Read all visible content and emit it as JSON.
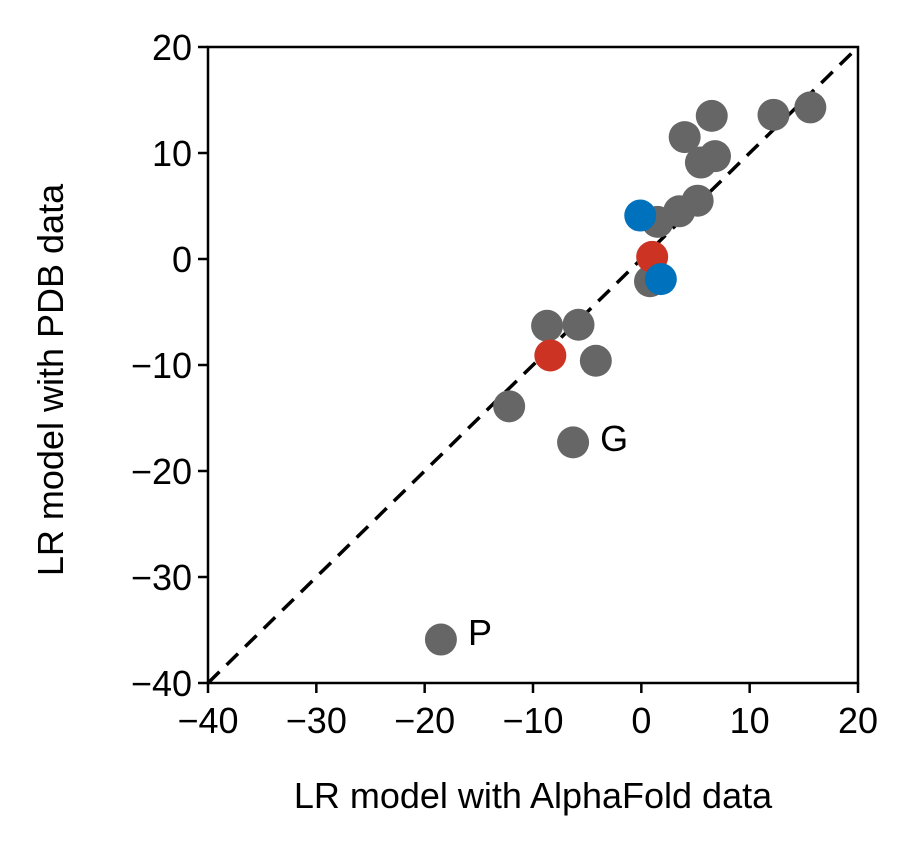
{
  "chart_data": {
    "type": "scatter",
    "title": "",
    "xlabel": "LR model with AlphaFold data",
    "ylabel": "LR model with PDB data",
    "xlim": [
      -40,
      20
    ],
    "ylim": [
      -40,
      20
    ],
    "xticks": [
      -40,
      -30,
      -20,
      -10,
      0,
      10,
      20
    ],
    "yticks": [
      -40,
      -30,
      -20,
      -10,
      0,
      10,
      20
    ],
    "xtick_labels": [
      "−40",
      "−30",
      "−20",
      "−10",
      "0",
      "10",
      "20"
    ],
    "ytick_labels": [
      "−40",
      "−30",
      "−20",
      "−10",
      "0",
      "10",
      "20"
    ],
    "grid": false,
    "reference_line": {
      "style": "dashed",
      "color": "#000000",
      "from": [
        -40,
        -40
      ],
      "to": [
        20,
        20
      ]
    },
    "colors": {
      "gray": "#666666",
      "red": "#cc3322",
      "blue": "#0071bc"
    },
    "series": [
      {
        "color": "#666666",
        "points": [
          {
            "x": 6.5,
            "y": 13.5
          },
          {
            "x": 4.0,
            "y": 11.5
          },
          {
            "x": 12.2,
            "y": 13.6
          },
          {
            "x": 15.6,
            "y": 14.3
          },
          {
            "x": 5.5,
            "y": 9.1
          },
          {
            "x": 6.8,
            "y": 9.7
          },
          {
            "x": 1.5,
            "y": 3.5
          },
          {
            "x": 3.5,
            "y": 4.5
          },
          {
            "x": 5.2,
            "y": 5.5
          },
          {
            "x": 0.8,
            "y": -2.1
          },
          {
            "x": -8.7,
            "y": -6.3
          },
          {
            "x": -5.8,
            "y": -6.2
          },
          {
            "x": -4.2,
            "y": -9.6
          },
          {
            "x": -12.2,
            "y": -13.9
          },
          {
            "x": -6.3,
            "y": -17.3
          },
          {
            "x": -18.5,
            "y": -35.9
          }
        ]
      },
      {
        "color": "#cc3322",
        "points": [
          {
            "x": 1.0,
            "y": 0.2
          },
          {
            "x": -8.4,
            "y": -9.1
          }
        ]
      },
      {
        "color": "#0071bc",
        "points": [
          {
            "x": -0.1,
            "y": 4.1
          },
          {
            "x": 1.8,
            "y": -1.9
          }
        ]
      }
    ],
    "annotations": [
      {
        "text": "G",
        "x": -3.8,
        "y": -16.9
      },
      {
        "text": "P",
        "x": -16.0,
        "y": -35.2
      }
    ]
  }
}
